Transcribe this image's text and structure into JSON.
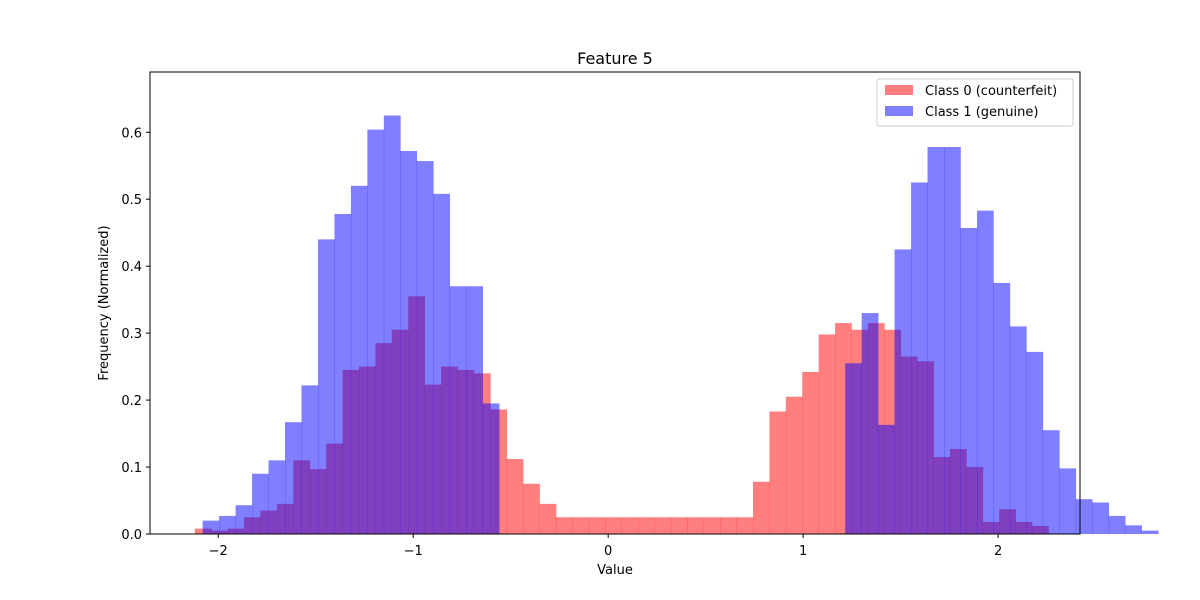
{
  "chart_data": {
    "type": "histogram",
    "title": "Feature 5",
    "xlabel": "Value",
    "ylabel": "Frequency (Normalized)",
    "xlim": [
      -2.35,
      2.42
    ],
    "ylim": [
      0,
      0.69
    ],
    "xticks": [
      -2,
      -1,
      0,
      1,
      2
    ],
    "xtick_labels": [
      "−2",
      "−1",
      "0",
      "1",
      "2"
    ],
    "yticks": [
      0.0,
      0.1,
      0.2,
      0.3,
      0.4,
      0.5,
      0.6
    ],
    "ytick_labels": [
      "0.0",
      "0.1",
      "0.2",
      "0.3",
      "0.4",
      "0.5",
      "0.6"
    ],
    "legend_position": "top-right",
    "series": [
      {
        "name": "Class 0 (counterfeit)",
        "color": "#ff0000",
        "alpha": 0.5,
        "bin_start": -2.12,
        "bin_width": 0.0842,
        "values": [
          0.008,
          0.005,
          0.008,
          0.025,
          0.035,
          0.045,
          0.11,
          0.097,
          0.135,
          0.245,
          0.25,
          0.285,
          0.305,
          0.355,
          0.223,
          0.25,
          0.245,
          0.24,
          0.186,
          0.112,
          0.075,
          0.045,
          0.025,
          0.025,
          0.025,
          0.025,
          0.025,
          0.025,
          0.025,
          0.025,
          0.025,
          0.025,
          0.025,
          0.025,
          0.078,
          0.183,
          0.205,
          0.242,
          0.298,
          0.315,
          0.305,
          0.315,
          0.305,
          0.265,
          0.258,
          0.115,
          0.127,
          0.1,
          0.018,
          0.037,
          0.018,
          0.012,
          0.0
        ]
      },
      {
        "name": "Class 1 (genuine)",
        "color": "#0000ff",
        "alpha": 0.5,
        "bin_start": -2.08,
        "bin_width": 0.0845,
        "values": [
          0.02,
          0.027,
          0.043,
          0.09,
          0.11,
          0.167,
          0.222,
          0.44,
          0.478,
          0.52,
          0.604,
          0.625,
          0.572,
          0.557,
          0.508,
          0.37,
          0.37,
          0.195,
          0.0,
          0.0,
          0.0,
          0.0,
          0.0,
          0.0,
          0.0,
          0.0,
          0.0,
          0.0,
          0.0,
          0.0,
          0.0,
          0.0,
          0.0,
          0.0,
          0.0,
          0.0,
          0.0,
          0.0,
          0.0,
          0.255,
          0.33,
          0.163,
          0.425,
          0.525,
          0.578,
          0.578,
          0.457,
          0.483,
          0.375,
          0.31,
          0.272,
          0.155,
          0.098,
          0.052,
          0.047,
          0.027,
          0.013,
          0.005
        ]
      }
    ]
  }
}
